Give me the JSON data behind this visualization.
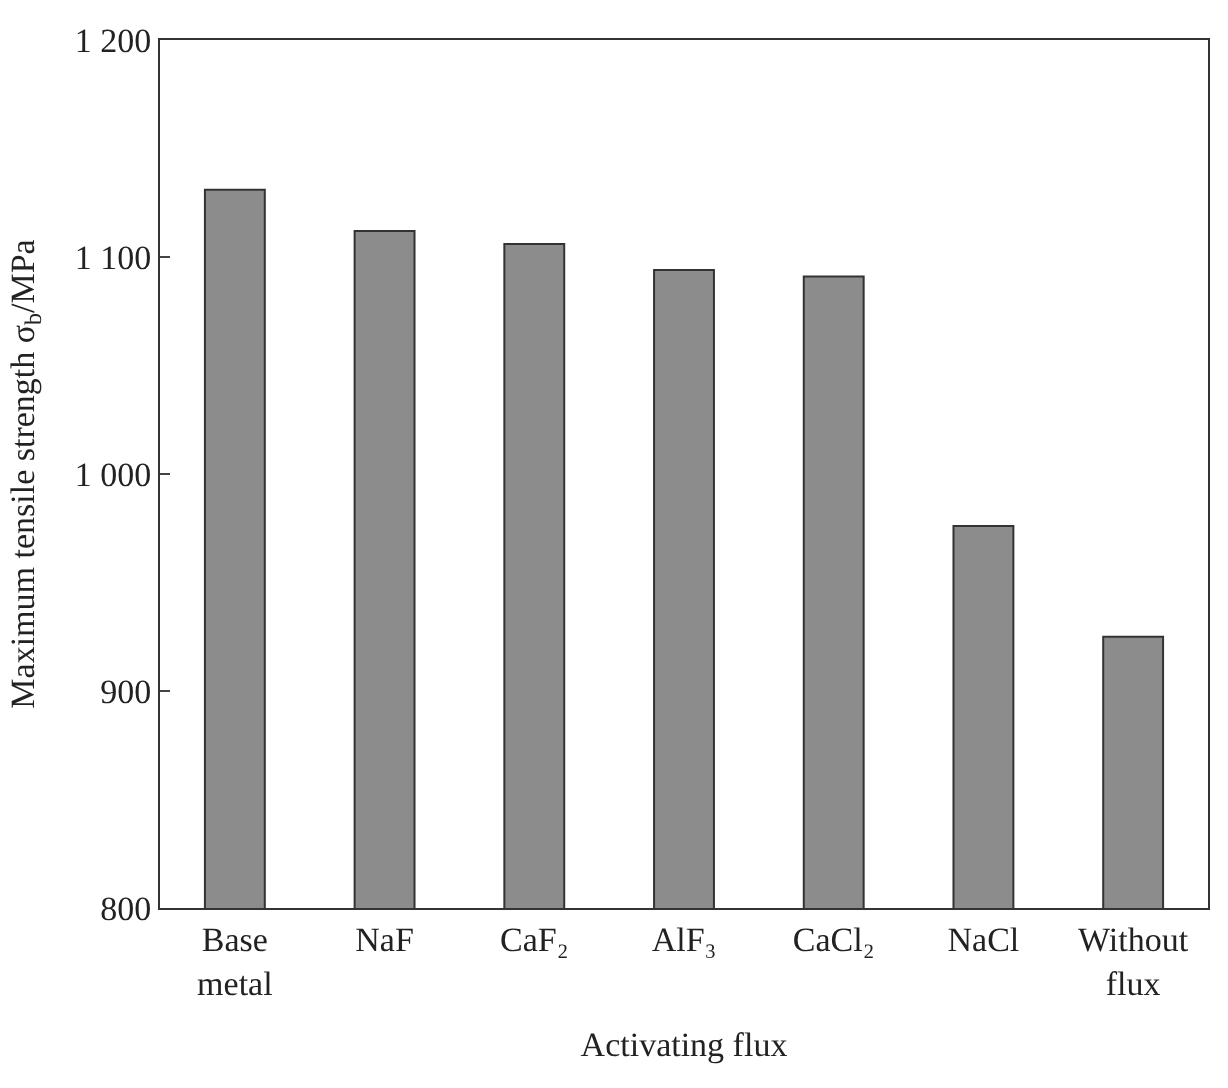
{
  "chart_data": {
    "type": "bar",
    "xlabel": "Activating flux",
    "ylabel": "Maximum tensile strength σ$_{b}$/MPa",
    "categories": [
      "Base\nmetal",
      "NaF",
      "CaF₂",
      "AlF₃",
      "CaCl₂",
      "NaCl",
      "Without\nflux"
    ],
    "values": [
      1131,
      1112,
      1106,
      1094,
      1091,
      976,
      925
    ],
    "color": "#8c8c8c",
    "ylim": [
      800,
      1200
    ],
    "yticks": [
      {
        "value": 800,
        "label": "800"
      },
      {
        "value": 900,
        "label": "900"
      },
      {
        "value": 1000,
        "label": "1 000"
      },
      {
        "value": 1100,
        "label": "1 100"
      },
      {
        "value": 1200,
        "label": "1 200"
      }
    ],
    "grid": false
  }
}
